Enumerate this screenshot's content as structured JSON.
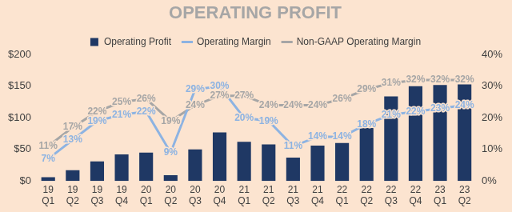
{
  "chart_data": {
    "type": "bar",
    "title": "OPERATING PROFIT",
    "categories": [
      [
        "19",
        "Q1"
      ],
      [
        "19",
        "Q2"
      ],
      [
        "19",
        "Q3"
      ],
      [
        "19",
        "Q4"
      ],
      [
        "20",
        "Q1"
      ],
      [
        "20",
        "Q2"
      ],
      [
        "20",
        "Q3"
      ],
      [
        "20",
        "Q4"
      ],
      [
        "21",
        "Q1"
      ],
      [
        "21",
        "Q2"
      ],
      [
        "21",
        "Q3"
      ],
      [
        "21",
        "Q4"
      ],
      [
        "22",
        "Q1"
      ],
      [
        "22",
        "Q2"
      ],
      [
        "22",
        "Q3"
      ],
      [
        "22",
        "Q4"
      ],
      [
        "23",
        "Q1"
      ],
      [
        "23",
        "Q2"
      ]
    ],
    "series": [
      {
        "name": "Operating Profit",
        "type": "bar",
        "color": "#1f3864",
        "values": [
          6,
          17,
          31,
          42,
          45,
          9,
          50,
          77,
          62,
          58,
          37,
          56,
          60,
          84,
          134,
          150,
          152,
          153
        ]
      },
      {
        "name": "Operating Margin",
        "type": "line",
        "color": "#8db3e2",
        "axis": "y2",
        "marker": "none",
        "line_style": "solid",
        "data_labels": true,
        "values": [
          7,
          13,
          19,
          21,
          22,
          9,
          29,
          30,
          20,
          19,
          11,
          14,
          14,
          18,
          21,
          22,
          23,
          24
        ],
        "value_labels": [
          "7%",
          "13%",
          "19%",
          "21%",
          "22%",
          "9%",
          "29%",
          "30%",
          "20%",
          "19%",
          "11%",
          "14%",
          "14%",
          "18%",
          "21%",
          "22%",
          "23%",
          "24%"
        ]
      },
      {
        "name": "Non-GAAP Operating Margin",
        "type": "line",
        "color": "#a6a6a6",
        "axis": "y2",
        "marker": "none",
        "line_style": "solid",
        "data_labels": true,
        "values": [
          11,
          17,
          22,
          25,
          26,
          19,
          24,
          27,
          27,
          24,
          24,
          24,
          26,
          29,
          31,
          32,
          32,
          32
        ],
        "value_labels": [
          "11%",
          "17%",
          "22%",
          "25%",
          "26%",
          "19%",
          "24%",
          "27%",
          "27%",
          "24%",
          "24%",
          "24%",
          "26%",
          "29%",
          "31%",
          "32%",
          "32%",
          "32%"
        ]
      }
    ],
    "ylim": [
      0,
      200
    ],
    "yticks": [
      {
        "value": 0,
        "label": "$0"
      },
      {
        "value": 50,
        "label": "$50"
      },
      {
        "value": 100,
        "label": "$100"
      },
      {
        "value": 150,
        "label": "$150"
      },
      {
        "value": 200,
        "label": "$200"
      }
    ],
    "y2lim": [
      0,
      40
    ],
    "y2ticks": [
      {
        "value": 0,
        "label": "0%"
      },
      {
        "value": 10,
        "label": "10%"
      },
      {
        "value": 20,
        "label": "20%"
      },
      {
        "value": 30,
        "label": "30%"
      },
      {
        "value": 40,
        "label": "40%"
      }
    ],
    "grid": false,
    "legend": "top"
  }
}
